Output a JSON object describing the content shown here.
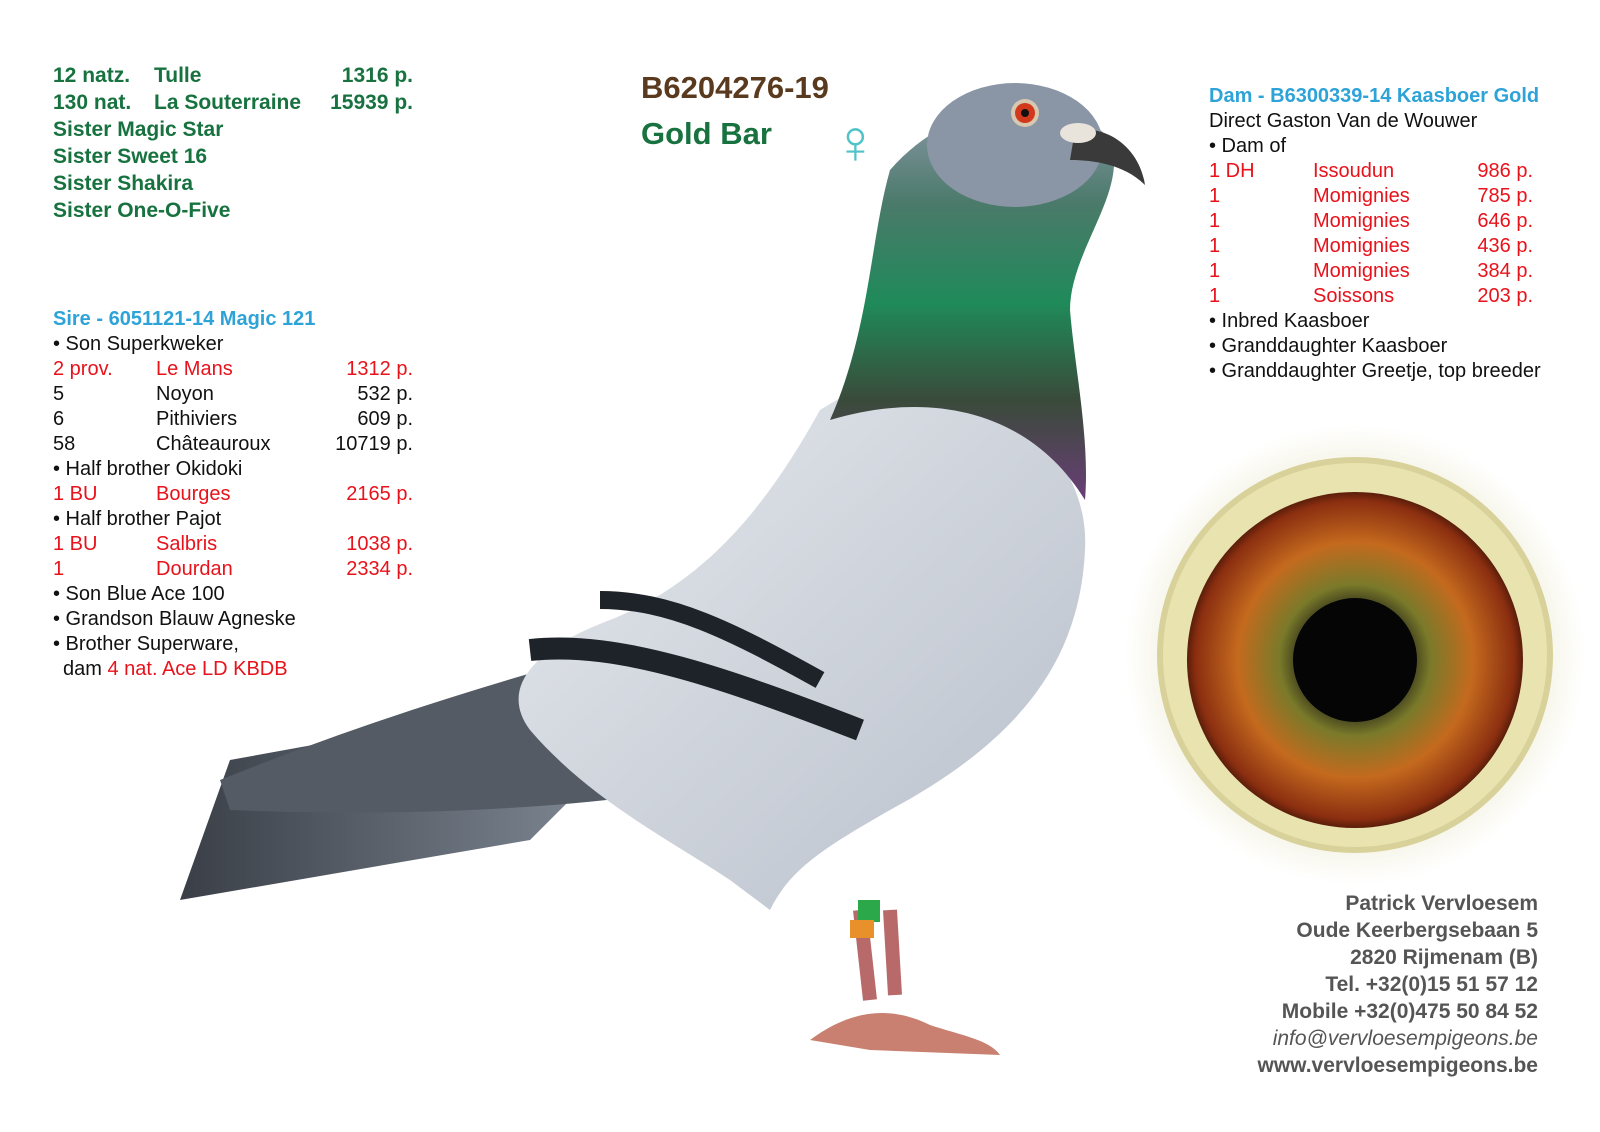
{
  "top_results": [
    {
      "place": "12 natz.",
      "race": "Tulle",
      "pts": "1316 p."
    },
    {
      "place": "130 nat.",
      "race": "La Souterraine",
      "pts": "15939 p."
    }
  ],
  "sisters": [
    "Sister Magic Star",
    "Sister Sweet 16",
    "Sister Shakira",
    "Sister One-O-Five"
  ],
  "pigeon": {
    "ring": "B6204276-19",
    "name": "Gold Bar",
    "sex_symbol": "♀"
  },
  "sire": {
    "title": "Sire - 6051121-14 Magic 121",
    "lines": [
      {
        "type": "bullet",
        "text": "• Son Superkweker"
      },
      {
        "type": "result",
        "red": true,
        "place": "2 prov.",
        "race": "Le Mans",
        "pts": "1312 p."
      },
      {
        "type": "result",
        "red": false,
        "place": "5",
        "race": "Noyon",
        "pts": "532 p."
      },
      {
        "type": "result",
        "red": false,
        "place": "6",
        "race": "Pithiviers",
        "pts": "609 p."
      },
      {
        "type": "result",
        "red": false,
        "place": "58",
        "race": "Châteauroux",
        "pts": "10719 p."
      },
      {
        "type": "bullet",
        "text": "• Half brother Okidoki"
      },
      {
        "type": "result",
        "red": true,
        "place": "1 BU",
        "race": "Bourges",
        "pts": "2165 p."
      },
      {
        "type": "bullet",
        "text": "• Half brother Pajot"
      },
      {
        "type": "result",
        "red": true,
        "place": "1 BU",
        "race": "Salbris",
        "pts": "1038 p."
      },
      {
        "type": "result",
        "red": true,
        "place": "1",
        "race": "Dourdan",
        "pts": "2334 p."
      },
      {
        "type": "bullet",
        "text": "• Son Blue Ace 100"
      },
      {
        "type": "bullet",
        "text": "• Grandson Blauw Agneske"
      },
      {
        "type": "bullet",
        "text": "• Brother Superware,"
      }
    ],
    "last_prefix": "dam ",
    "last_red": "4 nat. Ace LD KBDB"
  },
  "dam": {
    "title": "Dam - B6300339-14 Kaasboer Gold",
    "subtitle": "Direct Gaston Van de Wouwer",
    "lines": [
      {
        "type": "bullet",
        "text": "• Dam of"
      },
      {
        "type": "result",
        "red": true,
        "place": "1 DH",
        "race": "Issoudun",
        "pts": "986 p."
      },
      {
        "type": "result",
        "red": true,
        "place": "1",
        "race": "Momignies",
        "pts": "785 p."
      },
      {
        "type": "result",
        "red": true,
        "place": "1",
        "race": "Momignies",
        "pts": "646 p."
      },
      {
        "type": "result",
        "red": true,
        "place": "1",
        "race": "Momignies",
        "pts": "436 p."
      },
      {
        "type": "result",
        "red": true,
        "place": "1",
        "race": "Momignies",
        "pts": "384 p."
      },
      {
        "type": "result",
        "red": true,
        "place": "1",
        "race": "Soissons",
        "pts": "203 p."
      },
      {
        "type": "bullet",
        "text": "• Inbred Kaasboer"
      },
      {
        "type": "bullet",
        "text": "• Granddaughter Kaasboer"
      },
      {
        "type": "bullet",
        "text": "• Granddaughter Greetje, top breeder"
      }
    ]
  },
  "contact": {
    "name": "Patrick Vervloesem",
    "street": "Oude Keerbergsebaan 5",
    "city": "2820 Rijmenam (B)",
    "tel": "Tel. +32(0)15 51 57 12",
    "mobile": "Mobile +32(0)475 50 84 52",
    "email": "info@vervloesempigeons.be",
    "web": "www.vervloesempigeons.be"
  },
  "colors": {
    "green": "#17723f",
    "blue": "#2ea3d8",
    "red": "#e8121b",
    "brown": "#5a3a1e",
    "sex": "#4fc3c7"
  }
}
